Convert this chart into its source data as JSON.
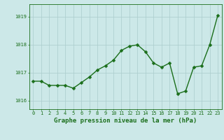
{
  "x": [
    0,
    1,
    2,
    3,
    4,
    5,
    6,
    7,
    8,
    9,
    10,
    11,
    12,
    13,
    14,
    15,
    16,
    17,
    18,
    19,
    20,
    21,
    22,
    23
  ],
  "y": [
    1016.7,
    1016.7,
    1016.55,
    1016.55,
    1016.55,
    1016.45,
    1016.65,
    1016.85,
    1017.1,
    1017.25,
    1017.45,
    1017.8,
    1017.95,
    1018.0,
    1017.75,
    1017.35,
    1017.2,
    1017.35,
    1016.25,
    1016.35,
    1017.2,
    1017.25,
    1018.0,
    1019.05
  ],
  "line_color": "#1a6e1a",
  "marker_color": "#1a6e1a",
  "bg_color": "#cce8e8",
  "grid_color": "#aacccc",
  "axis_color": "#1a6e1a",
  "tick_color": "#1a6e1a",
  "xlabel": "Graphe pression niveau de la mer (hPa)",
  "xlabel_fontsize": 6.5,
  "ylim": [
    1015.7,
    1019.45
  ],
  "yticks": [
    1016,
    1017,
    1018,
    1019
  ],
  "xticks": [
    0,
    1,
    2,
    3,
    4,
    5,
    6,
    7,
    8,
    9,
    10,
    11,
    12,
    13,
    14,
    15,
    16,
    17,
    18,
    19,
    20,
    21,
    22,
    23
  ],
  "tick_fontsize": 5.0,
  "line_width": 1.0,
  "marker_size": 2.5
}
